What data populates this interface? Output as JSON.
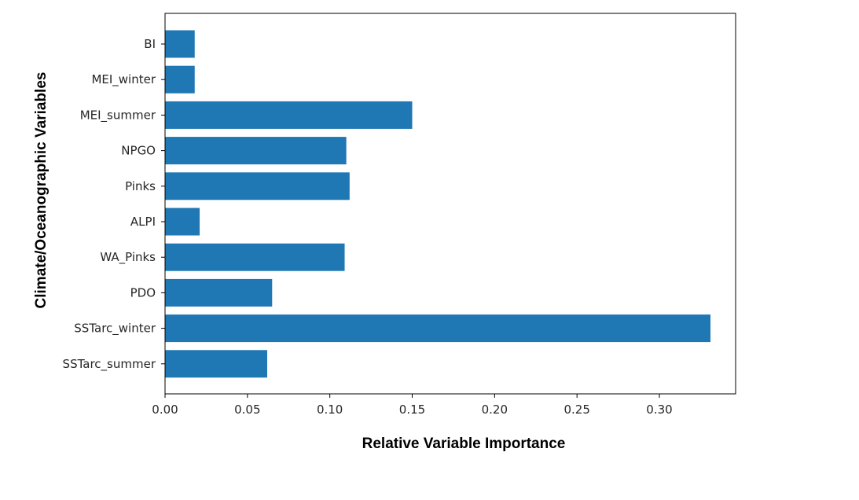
{
  "chart_data": {
    "type": "bar",
    "orientation": "horizontal",
    "categories": [
      "BI",
      "MEI_winter",
      "MEI_summer",
      "NPGO",
      "Pinks",
      "ALPI",
      "WA_Pinks",
      "PDO",
      "SSTarc_winter",
      "SSTarc_summer"
    ],
    "values": [
      0.018,
      0.018,
      0.15,
      0.11,
      0.112,
      0.021,
      0.109,
      0.065,
      0.331,
      0.062
    ],
    "xlabel": "Relative Variable Importance",
    "ylabel": "Climate/Oceanographic Variables",
    "xlim": [
      0.0,
      0.35
    ],
    "xticks": [
      "0.00",
      "0.05",
      "0.10",
      "0.15",
      "0.20",
      "0.25",
      "0.30"
    ],
    "bar_color": "#1f77b4",
    "grid": false
  }
}
